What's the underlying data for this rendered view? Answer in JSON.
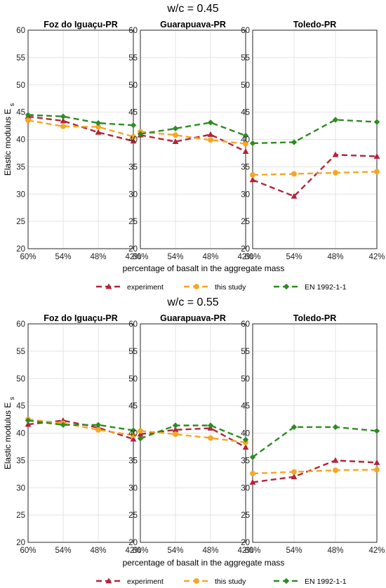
{
  "colors": {
    "experiment": "#b0243c",
    "this_study": "#f5a623",
    "en1992": "#2e8b22"
  },
  "chart_data": [
    {
      "type": "line",
      "title": "w/c = 0.45",
      "xlabel": "percentage of basalt in the aggregate mass",
      "ylabel": "Elastic modulus E",
      "ylabel_sub": "s",
      "categories": [
        "60%",
        "54%",
        "48%",
        "42%"
      ],
      "ylim": [
        20,
        60
      ],
      "yticks": [
        20,
        25,
        30,
        35,
        40,
        45,
        50,
        55,
        60
      ],
      "grid": true,
      "legend": [
        "experiment",
        "this study",
        "EN 1992-1-1"
      ],
      "panels": [
        {
          "title": "Foz do Iguaçu-PR",
          "series": [
            {
              "name": "experiment",
              "values": [
                44.2,
                43.4,
                41.3,
                39.7
              ]
            },
            {
              "name": "this study",
              "values": [
                43.5,
                42.4,
                42.3,
                40.5
              ]
            },
            {
              "name": "EN 1992-1-1",
              "values": [
                44.5,
                44.2,
                43.0,
                42.6
              ]
            }
          ]
        },
        {
          "title": "Guarapuava-PR",
          "series": [
            {
              "name": "experiment",
              "values": [
                40.8,
                39.6,
                40.9,
                37.8
              ]
            },
            {
              "name": "this study",
              "values": [
                41.4,
                40.8,
                39.9,
                39.2
              ]
            },
            {
              "name": "EN 1992-1-1",
              "values": [
                41.0,
                42.0,
                43.1,
                40.7
              ]
            }
          ]
        },
        {
          "title": "Toledo-PR",
          "series": [
            {
              "name": "experiment",
              "values": [
                32.6,
                29.6,
                37.2,
                36.9
              ]
            },
            {
              "name": "this study",
              "values": [
                33.5,
                33.7,
                33.9,
                34.1
              ]
            },
            {
              "name": "EN 1992-1-1",
              "values": [
                39.3,
                39.5,
                43.6,
                43.2
              ]
            }
          ]
        }
      ]
    },
    {
      "type": "line",
      "title": "w/c = 0.55",
      "xlabel": "percentage of basalt in the aggregate mass",
      "ylabel": "Elastic modulus E",
      "ylabel_sub": "s",
      "categories": [
        "60%",
        "54%",
        "48%",
        "42%"
      ],
      "ylim": [
        20,
        60
      ],
      "yticks": [
        20,
        25,
        30,
        35,
        40,
        45,
        50,
        55,
        60
      ],
      "grid": true,
      "legend": [
        "experiment",
        "this study",
        "EN 1992-1-1"
      ],
      "panels": [
        {
          "title": "Foz do Iguaçu-PR",
          "series": [
            {
              "name": "experiment",
              "values": [
                41.6,
                42.3,
                41.0,
                38.9
              ]
            },
            {
              "name": "this study",
              "values": [
                42.5,
                41.8,
                40.6,
                39.6
              ]
            },
            {
              "name": "EN 1992-1-1",
              "values": [
                42.3,
                41.5,
                41.5,
                40.5
              ]
            }
          ]
        },
        {
          "title": "Guarapuava-PR",
          "series": [
            {
              "name": "experiment",
              "values": [
                39.8,
                40.6,
                40.9,
                37.4
              ]
            },
            {
              "name": "this study",
              "values": [
                40.4,
                39.8,
                39.1,
                38.3
              ]
            },
            {
              "name": "EN 1992-1-1",
              "values": [
                39.0,
                41.4,
                41.4,
                38.8
              ]
            }
          ]
        },
        {
          "title": "Toledo-PR",
          "series": [
            {
              "name": "experiment",
              "values": [
                31.0,
                32.0,
                35.0,
                34.6
              ]
            },
            {
              "name": "this study",
              "values": [
                32.6,
                32.9,
                33.2,
                33.3
              ]
            },
            {
              "name": "EN 1992-1-1",
              "values": [
                35.6,
                41.1,
                41.1,
                40.4
              ]
            }
          ]
        }
      ]
    }
  ]
}
